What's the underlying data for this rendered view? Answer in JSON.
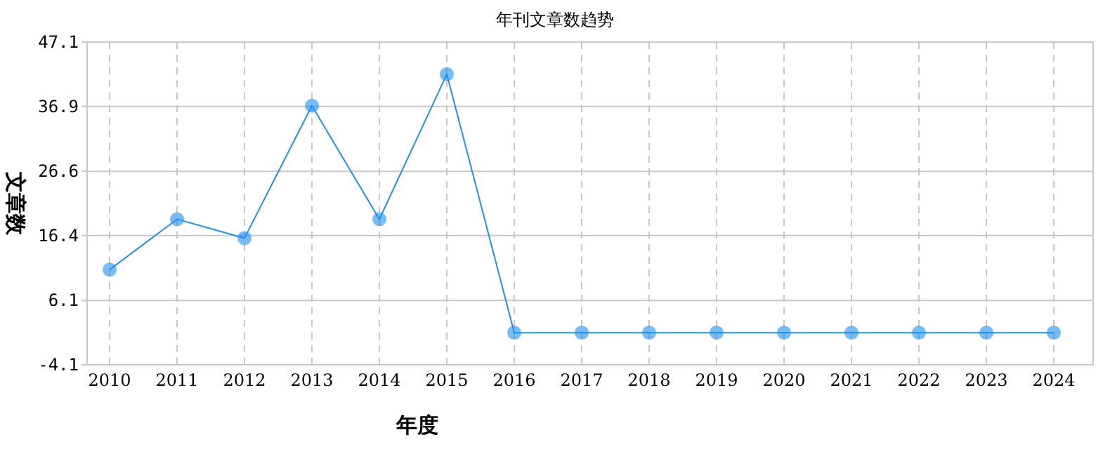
{
  "chart_data": {
    "type": "line",
    "title": "年刊文章数趋势",
    "xlabel": "年度",
    "ylabel": "文章数",
    "categories": [
      "2010",
      "2011",
      "2012",
      "2013",
      "2014",
      "2015",
      "2016",
      "2017",
      "2018",
      "2019",
      "2020",
      "2021",
      "2022",
      "2023",
      "2024"
    ],
    "series": [
      {
        "color": "#1e90ee",
        "values": [
          11,
          19,
          16,
          37,
          19,
          42,
          1,
          1,
          1,
          1,
          1,
          1,
          1,
          1,
          1
        ]
      }
    ],
    "ylim": [
      -4.1,
      47.1
    ],
    "yticks": [
      -4.1,
      6.1,
      16.4,
      26.6,
      36.9,
      47.1
    ],
    "grid": true,
    "marker": "circle",
    "line_style": "solid"
  }
}
